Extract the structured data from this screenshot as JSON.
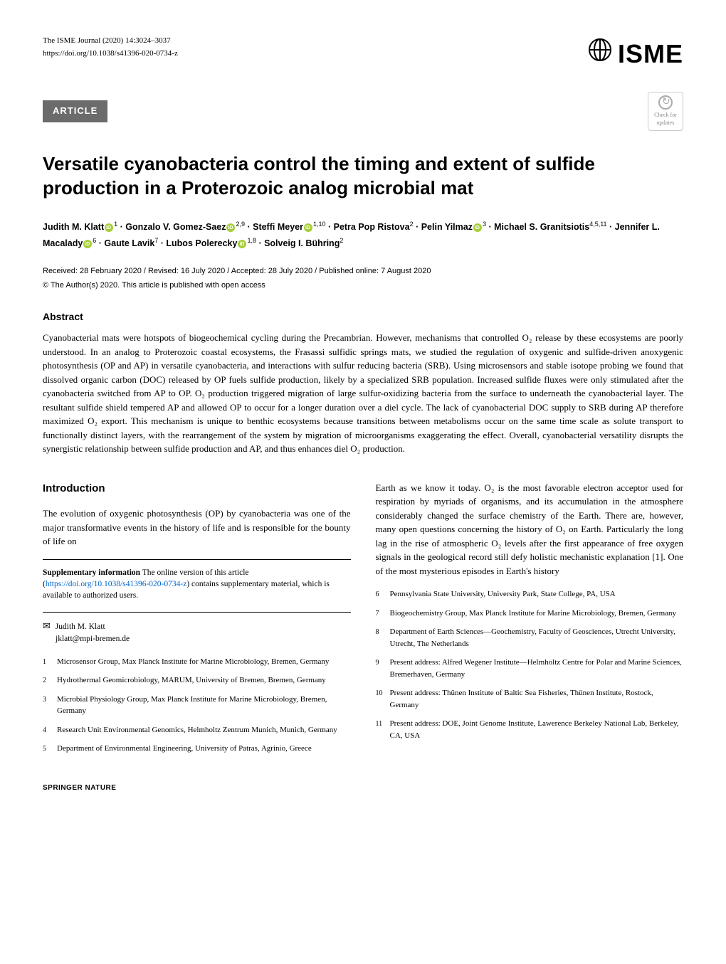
{
  "journal": "The ISME Journal (2020) 14:3024–3037",
  "doi": "https://doi.org/10.1038/s41396-020-0734-z",
  "logo_text": "ISME",
  "article_tag": "ARTICLE",
  "check_updates": "Check for updates",
  "title": "Versatile cyanobacteria control the timing and extent of sulfide production in a Proterozoic analog microbial mat",
  "authors_html": "Judith M. Klatt|orcid|1| · Gonzalo V. Gomez-Saez|orcid|2,9| · Steffi Meyer|orcid|1,10| · Petra Pop Ristova|2| · Pelin Yilmaz|orcid|3| · Michael S. Granitsiotis|4,5,11| · Jennifer L. Macalady|orcid|6| · Gaute Lavik|7| · Lubos Polerecky|orcid|1,8| · Solveig I. Bühring|2|",
  "dates": "Received: 28 February 2020 / Revised: 16 July 2020 / Accepted: 28 July 2020 / Published online: 7 August 2020",
  "license": "© The Author(s) 2020. This article is published with open access",
  "abstract_heading": "Abstract",
  "abstract": "Cyanobacterial mats were hotspots of biogeochemical cycling during the Precambrian. However, mechanisms that controlled O₂ release by these ecosystems are poorly understood. In an analog to Proterozoic coastal ecosystems, the Frasassi sulfidic springs mats, we studied the regulation of oxygenic and sulfide-driven anoxygenic photosynthesis (OP and AP) in versatile cyanobacteria, and interactions with sulfur reducing bacteria (SRB). Using microsensors and stable isotope probing we found that dissolved organic carbon (DOC) released by OP fuels sulfide production, likely by a specialized SRB population. Increased sulfide fluxes were only stimulated after the cyanobacteria switched from AP to OP. O₂ production triggered migration of large sulfur-oxidizing bacteria from the surface to underneath the cyanobacterial layer. The resultant sulfide shield tempered AP and allowed OP to occur for a longer duration over a diel cycle. The lack of cyanobacterial DOC supply to SRB during AP therefore maximized O₂ export. This mechanism is unique to benthic ecosystems because transitions between metabolisms occur on the same time scale as solute transport to functionally distinct layers, with the rearrangement of the system by migration of microorganisms exaggerating the effect. Overall, cyanobacterial versatility disrupts the synergistic relationship between sulfide production and AP, and thus enhances diel O₂ production.",
  "intro_heading": "Introduction",
  "intro_p1": "The evolution of oxygenic photosynthesis (OP) by cyanobacteria was one of the major transformative events in the history of life and is responsible for the bounty of life on",
  "intro_p2": "Earth as we know it today. O₂ is the most favorable electron acceptor used for respiration by myriads of organisms, and its accumulation in the atmosphere considerably changed the surface chemistry of the Earth. There are, however, many open questions concerning the history of O₂ on Earth. Particularly the long lag in the rise of atmospheric O₂ levels after the first appearance of free oxygen signals in the geological record still defy holistic mechanistic explanation [1]. One of the most mysterious episodes in Earth's history",
  "supp_bold": "Supplementary information",
  "supp_text": " The online version of this article (",
  "supp_link": "https://doi.org/10.1038/s41396-020-0734-z",
  "supp_text2": ") contains supplementary material, which is available to authorized users.",
  "corresp_name": "Judith M. Klatt",
  "corresp_email": "jklatt@mpi-bremen.de",
  "affiliations": [
    {
      "num": "1",
      "text": "Microsensor Group, Max Planck Institute for Marine Microbiology, Bremen, Germany"
    },
    {
      "num": "2",
      "text": "Hydrothermal Geomicrobiology, MARUM, University of Bremen, Bremen, Germany"
    },
    {
      "num": "3",
      "text": "Microbial Physiology Group, Max Planck Institute for Marine Microbiology, Bremen, Germany"
    },
    {
      "num": "4",
      "text": "Research Unit Environmental Genomics, Helmholtz Zentrum Munich, Munich, Germany"
    },
    {
      "num": "5",
      "text": "Department of Environmental Engineering, University of Patras, Agrinio, Greece"
    },
    {
      "num": "6",
      "text": "Pennsylvania State University, University Park, State College, PA, USA"
    },
    {
      "num": "7",
      "text": "Biogeochemistry Group, Max Planck Institute for Marine Microbiology, Bremen, Germany"
    },
    {
      "num": "8",
      "text": "Department of Earth Sciences—Geochemistry, Faculty of Geosciences, Utrecht University, Utrecht, The Netherlands"
    },
    {
      "num": "9",
      "text": "Present address: Alfred Wegener Institute—Helmholtz Centre for Polar and Marine Sciences, Bremerhaven, Germany"
    },
    {
      "num": "10",
      "text": "Present address: Thünen Institute of Baltic Sea Fisheries, Thünen Institute, Rostock, Germany"
    },
    {
      "num": "11",
      "text": "Present address: DOE, Joint Genome Institute, Lawerence Berkeley National Lab, Berkeley, CA, USA"
    }
  ],
  "springer": "SPRINGER NATURE",
  "colors": {
    "tag_bg": "#6b6b6b",
    "orcid": "#a6ce39",
    "link": "#0066cc"
  }
}
